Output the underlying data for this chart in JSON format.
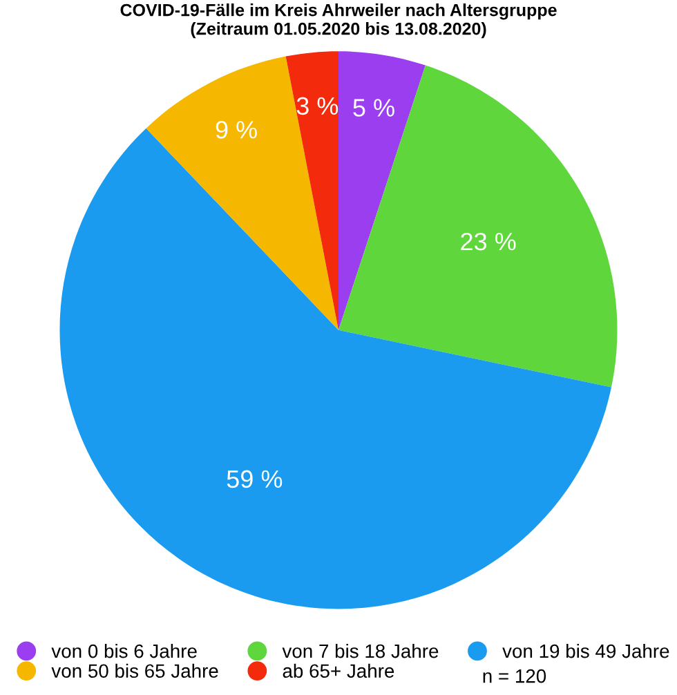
{
  "chart_data": {
    "type": "pie",
    "title": "COVID-19-Fälle im Kreis Ahrweiler nach Altersgruppe\n(Zeitraum 01.05.2020 bis 13.08.2020)",
    "categories": [
      "von 0 bis 6 Jahre",
      "von 7 bis 18 Jahre",
      "von 19 bis 49 Jahre",
      "von 50 bis 65 Jahre",
      "ab 65+ Jahre"
    ],
    "values": [
      5,
      23,
      59,
      9,
      3
    ],
    "value_labels": [
      "5 %",
      "23 %",
      "59 %",
      "9 %",
      "3 %"
    ],
    "colors": [
      "#9b3ef0",
      "#5ed63c",
      "#1a9bf0",
      "#f5b700",
      "#f32a0c"
    ],
    "legend": "bottom",
    "annotations": [
      "n = 120"
    ]
  }
}
